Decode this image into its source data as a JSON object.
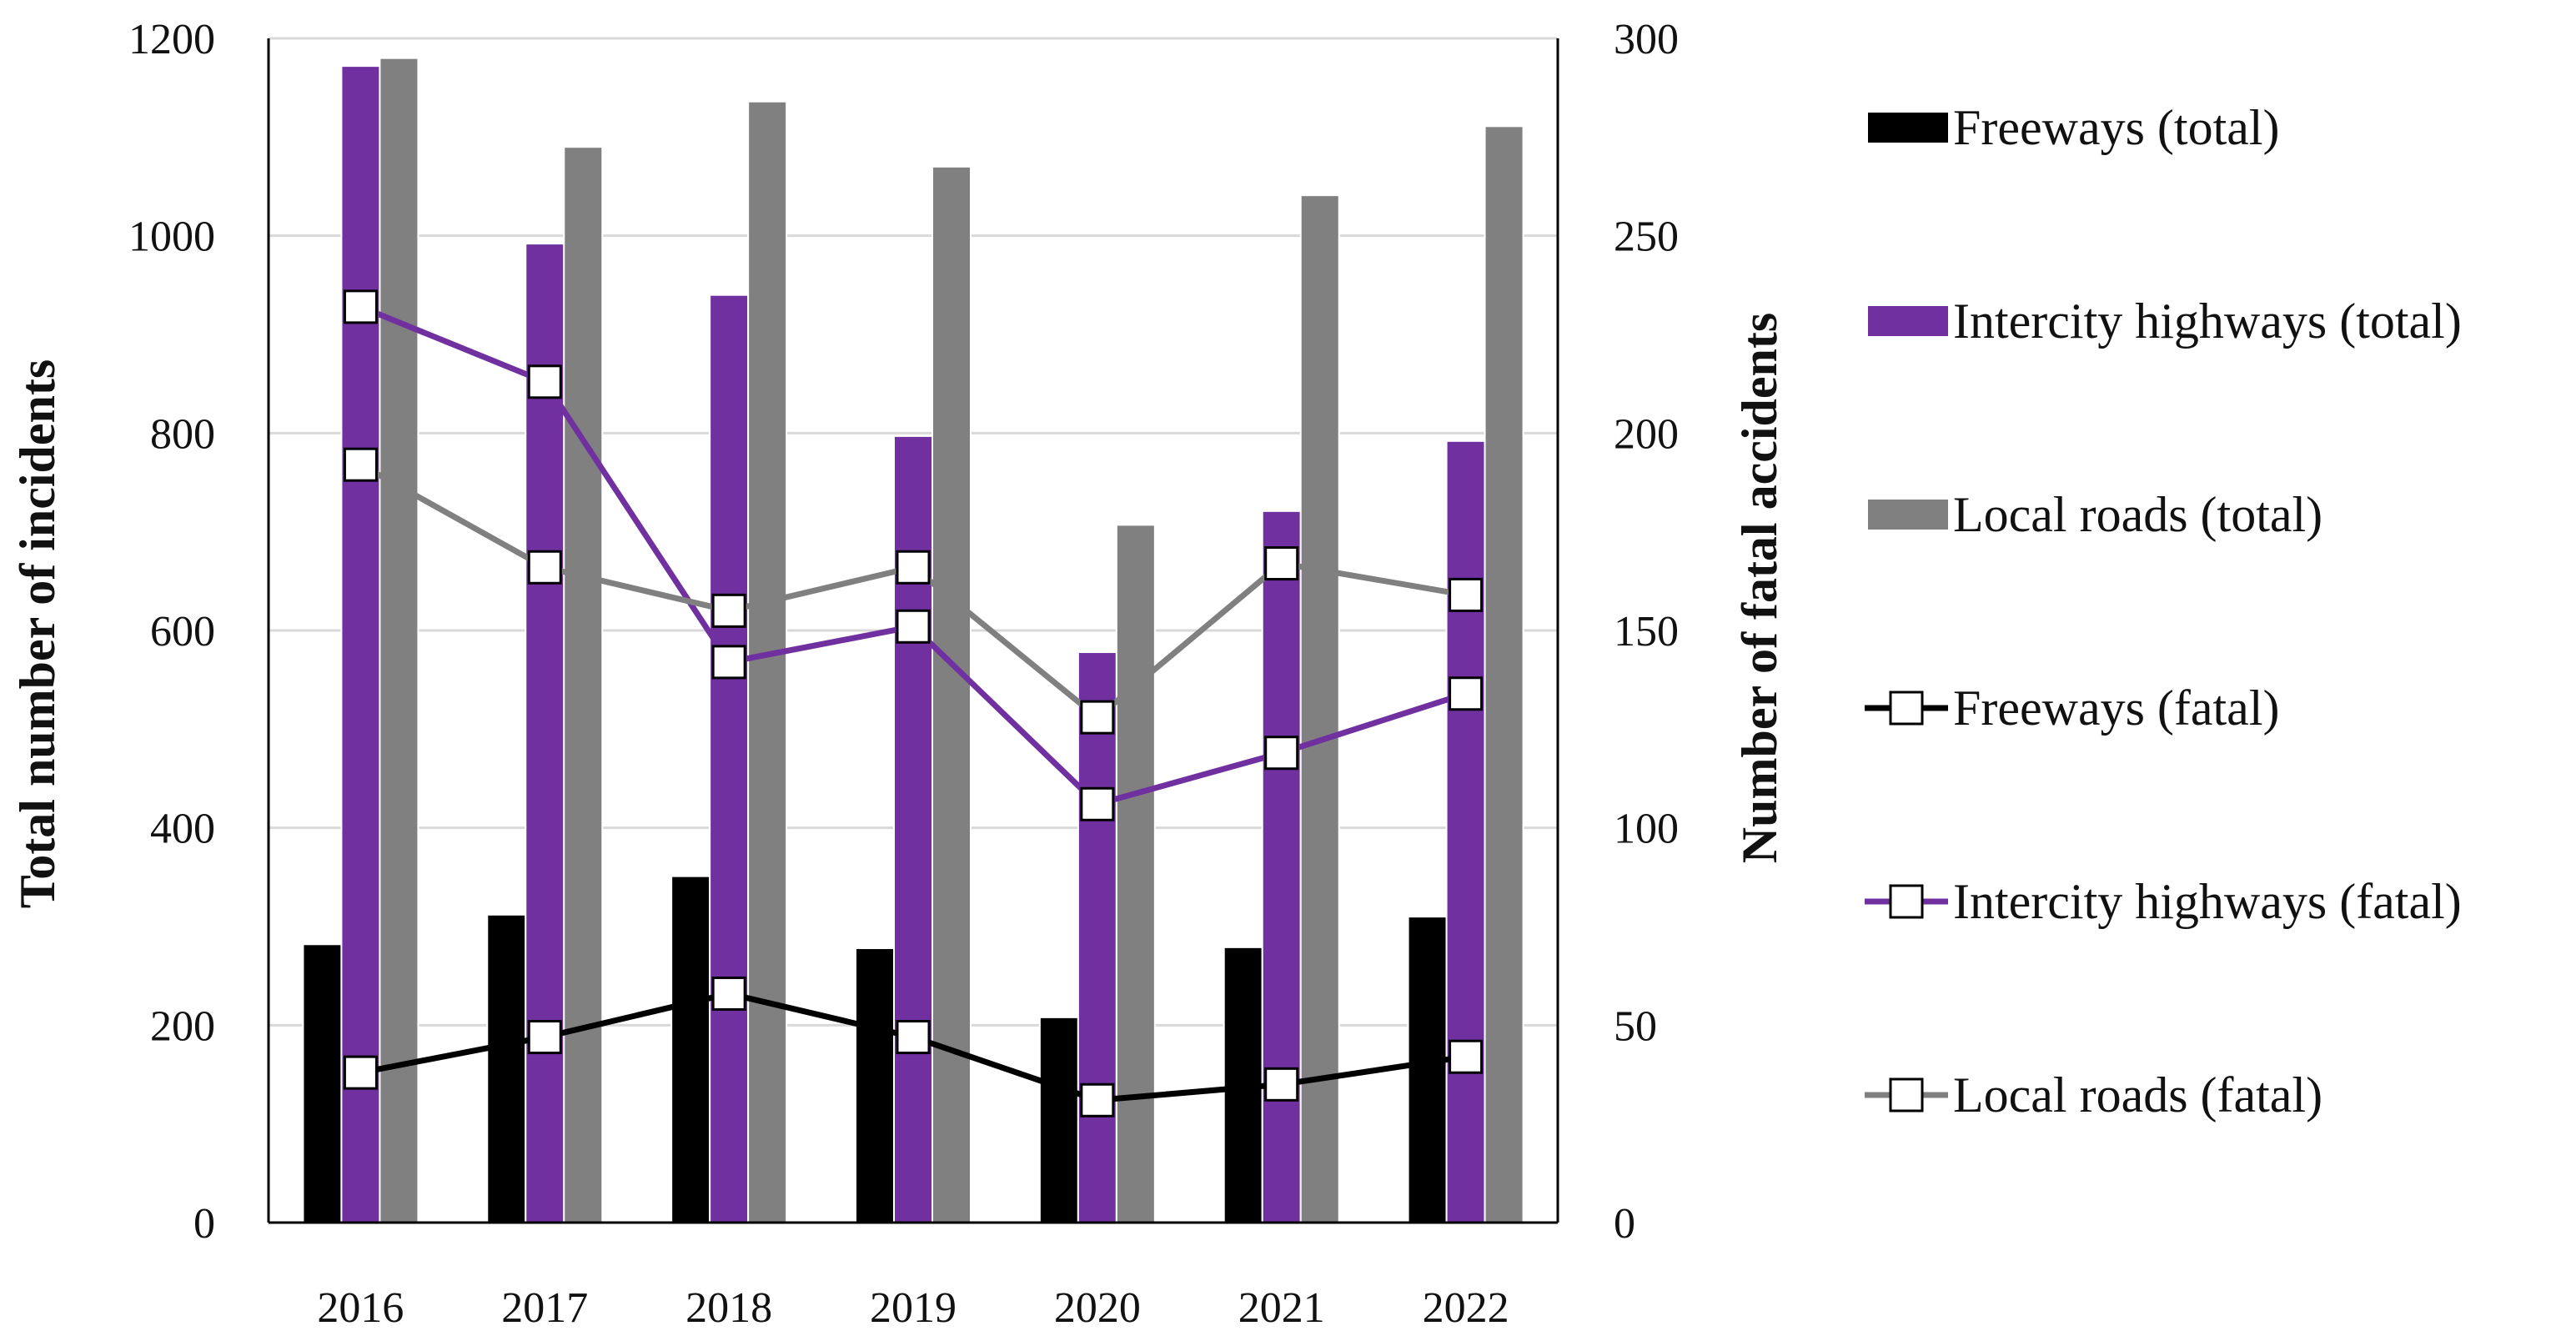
{
  "chart_data": {
    "type": "bar",
    "categories": [
      "2016",
      "2017",
      "2018",
      "2019",
      "2020",
      "2021",
      "2022"
    ],
    "xlabel": "",
    "ylabel": "Total number of incidents",
    "y2label": "Number of fatal accidents",
    "ylim": [
      0,
      1200
    ],
    "y2lim": [
      0,
      300
    ],
    "yticks": [
      0,
      200,
      400,
      600,
      800,
      1000,
      1200
    ],
    "y2ticks": [
      0,
      50,
      100,
      150,
      200,
      250,
      300
    ],
    "grid": "horizontal",
    "legend_position": "right",
    "bar_series": [
      {
        "name": "Freeways (total)",
        "color": "#000000",
        "values": [
          282,
          312,
          351,
          278,
          208,
          279,
          310
        ]
      },
      {
        "name": "Intercity highways (total)",
        "color": "#7030a0",
        "values": [
          1172,
          992,
          940,
          797,
          578,
          721,
          792
        ]
      },
      {
        "name": "Local roads (total)",
        "color": "#808080",
        "values": [
          1180,
          1090,
          1136,
          1070,
          707,
          1041,
          1111
        ]
      }
    ],
    "line_series": [
      {
        "name": "Freeways (fatal)",
        "color": "#000000",
        "axis": "right",
        "values": [
          38,
          47,
          58,
          47,
          31,
          35,
          42
        ]
      },
      {
        "name": "Intercity highways (fatal)",
        "color": "#7030a0",
        "axis": "right",
        "values": [
          232,
          213,
          142,
          151,
          106,
          119,
          134
        ]
      },
      {
        "name": "Local roads (fatal)",
        "color": "#808080",
        "axis": "right",
        "values": [
          192,
          166,
          155,
          166,
          128,
          167,
          159
        ]
      }
    ]
  }
}
